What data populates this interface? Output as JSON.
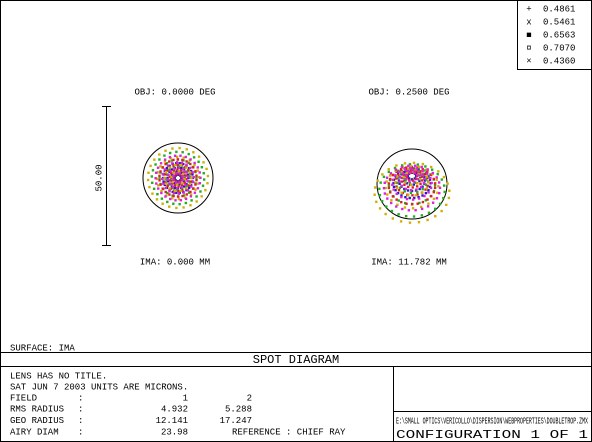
{
  "legend": [
    {
      "label": "0.4861",
      "marker": "+",
      "color": "#2020c0"
    },
    {
      "label": "0.5461",
      "marker": "x",
      "color": "#20b020"
    },
    {
      "label": "0.6563",
      "marker": "■",
      "color": "#e02020"
    },
    {
      "label": "0.7070",
      "marker": "¤",
      "color": "#d0b000"
    },
    {
      "label": "0.4360",
      "marker": "×",
      "color": "#e020e0"
    }
  ],
  "fields": [
    {
      "object": "OBJ: 0.0000 DEG",
      "image": "IMA: 0.000 MM"
    },
    {
      "object": "OBJ: 0.2500 DEG",
      "image": "IMA: 11.782 MM"
    }
  ],
  "scale_label": "50.00",
  "surface": "SURFACE: IMA",
  "title": "SPOT DIAGRAM",
  "info": {
    "line1": "LENS HAS NO TITLE.",
    "line2": "SAT JUN 7 2003  UNITS ARE MICRONS.",
    "rows": [
      [
        "FIELD",
        ":",
        "1",
        "2"
      ],
      [
        "RMS RADIUS",
        ":",
        "4.932",
        "5.288"
      ],
      [
        "GEO RADIUS",
        ":",
        "12.141",
        "17.247"
      ],
      [
        "AIRY DIAM",
        ":",
        "23.98",
        ""
      ]
    ],
    "reference": "REFERENCE  : CHIEF RAY"
  },
  "file": "E:\\SMALL OPTICS\\VERICOLLO\\DISPERSION\\WEBPROPERTIES\\DOUBLETROP.ZMX",
  "configuration": "CONFIGURATION 1 OF 1"
}
